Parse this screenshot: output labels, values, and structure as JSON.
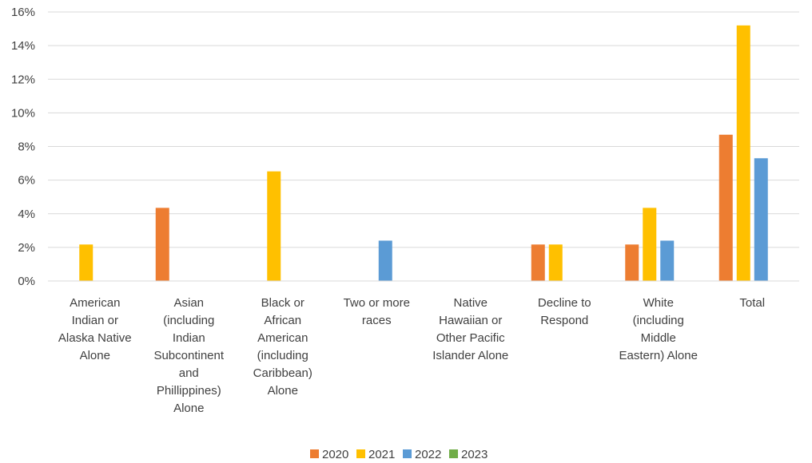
{
  "chart_data": {
    "type": "bar",
    "categories": [
      [
        "American",
        "Indian or",
        "Alaska Native",
        "Alone"
      ],
      [
        "Asian",
        "(including",
        "Indian",
        "Subcontinent",
        "and",
        "Phillippines)",
        "Alone"
      ],
      [
        "Black or",
        "African",
        "American",
        "(including",
        "Caribbean)",
        "Alone"
      ],
      [
        "Two or more",
        "races"
      ],
      [
        "Native",
        "Hawaiian or",
        "Other Pacific",
        "Islander Alone"
      ],
      [
        "Decline to",
        "Respond"
      ],
      [
        "White",
        "(including",
        "Middle",
        "Eastern) Alone"
      ],
      [
        "Total"
      ]
    ],
    "series": [
      {
        "name": "2020",
        "color": "#ED7D31",
        "values": [
          0,
          4.35,
          0,
          0,
          0,
          2.17,
          2.17,
          8.7
        ]
      },
      {
        "name": "2021",
        "color": "#FFC000",
        "values": [
          2.17,
          0,
          6.52,
          0,
          0,
          2.17,
          4.35,
          15.2
        ]
      },
      {
        "name": "2022",
        "color": "#5B9BD5",
        "values": [
          0,
          0,
          0,
          2.4,
          0,
          0,
          2.4,
          7.3
        ]
      },
      {
        "name": "2023",
        "color": "#70AD47",
        "values": [
          0,
          0,
          0,
          0,
          0,
          0,
          0,
          0
        ]
      }
    ],
    "ylim": [
      0,
      16
    ],
    "yticks": [
      0,
      2,
      4,
      6,
      8,
      10,
      12,
      14,
      16
    ],
    "ytick_format": "%",
    "grid": true,
    "legend_position": "bottom"
  }
}
